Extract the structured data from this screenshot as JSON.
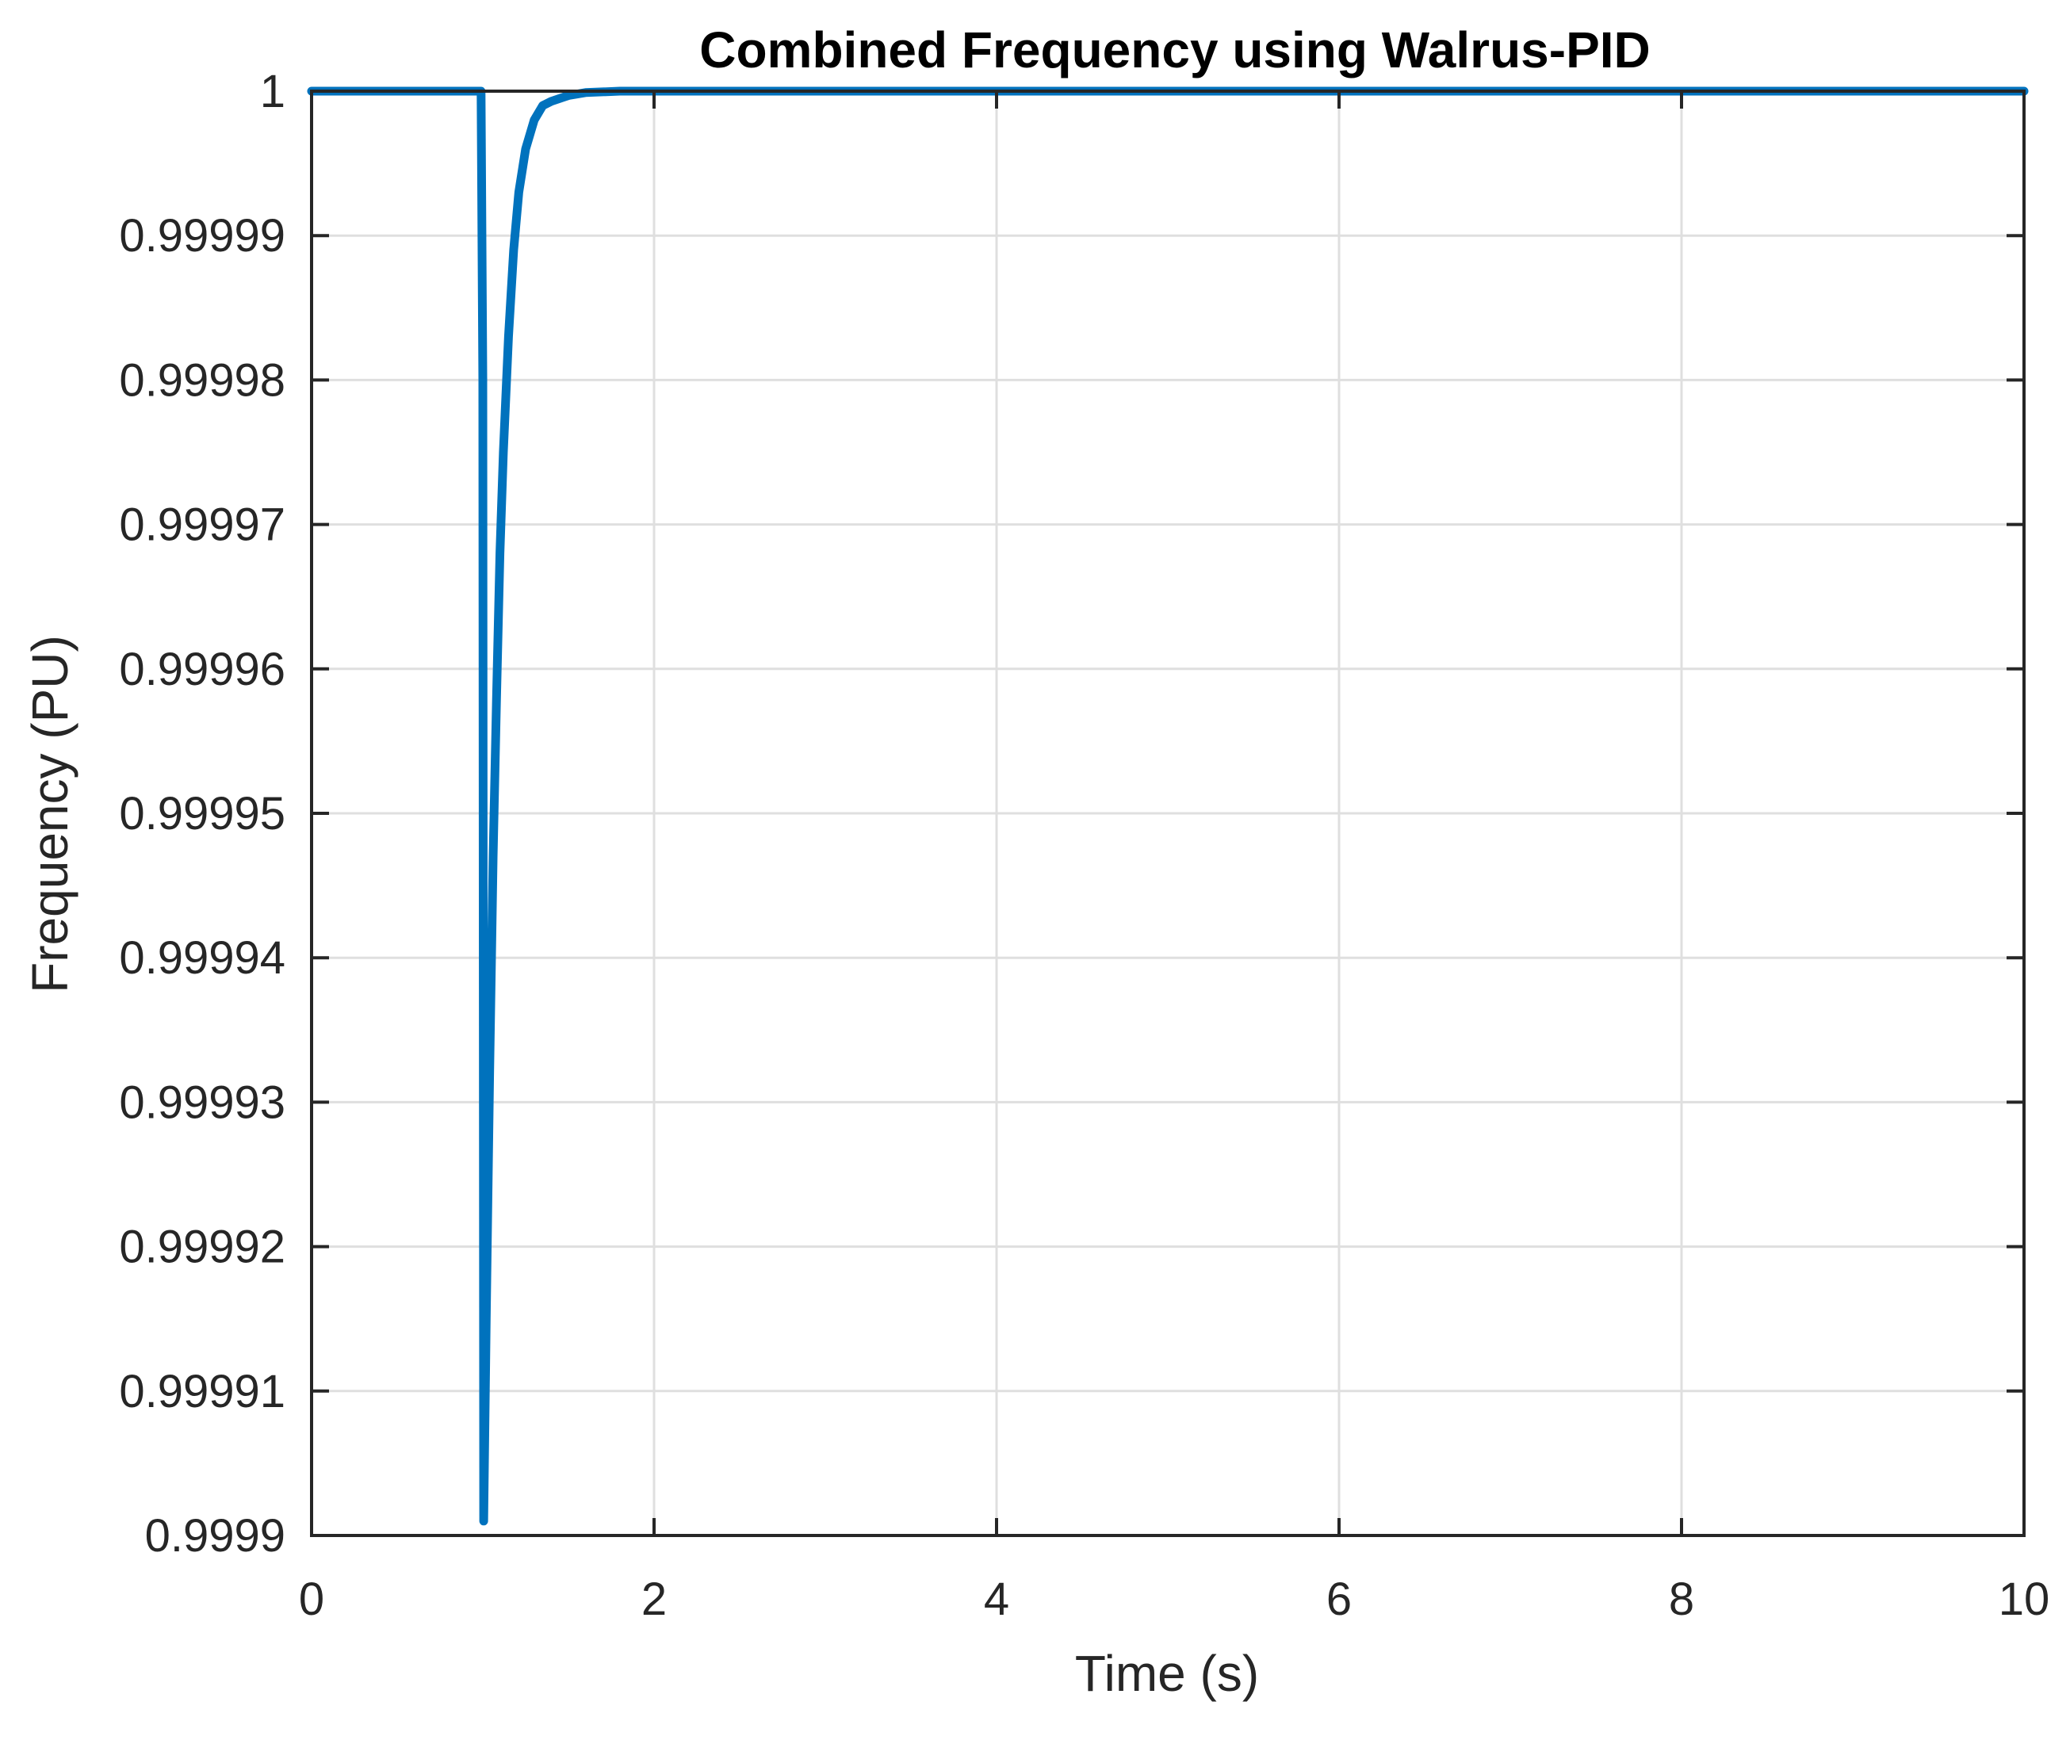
{
  "chart_data": {
    "type": "line",
    "title": "Combined Frequency using Walrus-PID",
    "xlabel": "Time (s)",
    "ylabel": "Frequency (PU)",
    "xlim": [
      0,
      10
    ],
    "ylim": [
      0.9999,
      1.0
    ],
    "x_ticks": [
      0,
      2,
      4,
      6,
      8,
      10
    ],
    "x_tick_labels": [
      "0",
      "2",
      "4",
      "6",
      "8",
      "10"
    ],
    "y_ticks": [
      0.9999,
      0.99991,
      0.99992,
      0.99993,
      0.99994,
      0.99995,
      0.99996,
      0.99997,
      0.99998,
      0.99999,
      1.0
    ],
    "y_tick_labels": [
      "0.9999",
      "0.99991",
      "0.99992",
      "0.99993",
      "0.99994",
      "0.99995",
      "0.99996",
      "0.99997",
      "0.99998",
      "0.99999",
      "1"
    ],
    "grid": true,
    "series": [
      {
        "color": "#0072BD",
        "x": [
          0,
          0.99,
          1.0,
          1.005,
          1.02,
          1.04,
          1.06,
          1.08,
          1.1,
          1.12,
          1.15,
          1.18,
          1.21,
          1.25,
          1.3,
          1.35,
          1.4,
          1.5,
          1.6,
          1.8,
          2.0,
          3,
          4,
          5,
          6,
          7,
          8,
          9,
          10
        ],
        "y": [
          1.0,
          1.0,
          0.99998,
          0.999901,
          0.999915,
          0.999932,
          0.999947,
          0.999958,
          0.999968,
          0.999975,
          0.999983,
          0.999989,
          0.999993,
          0.999996,
          0.999998,
          0.999999,
          0.9999993,
          0.9999997,
          0.9999999,
          1.0,
          1.0,
          1.0,
          1.0,
          1.0,
          1.0,
          1.0,
          1.0,
          1.0,
          1.0
        ]
      }
    ]
  }
}
